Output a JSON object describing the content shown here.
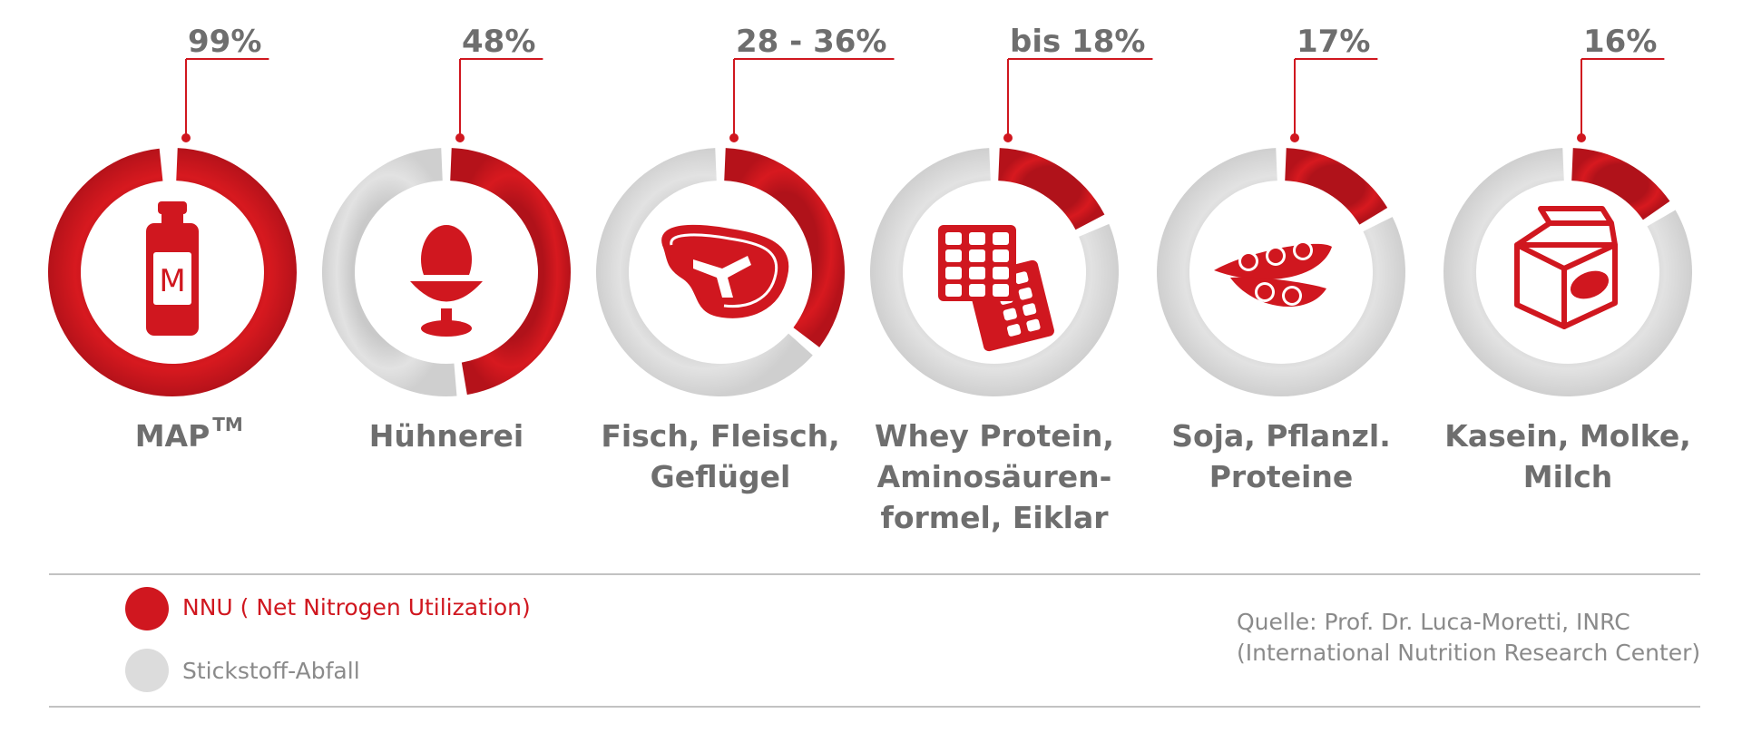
{
  "colors": {
    "nnu": "#d0171f",
    "waste": "#dcdcdc",
    "text": "#6e6e6e",
    "divider": "#bdbdbd",
    "source": "#8a8a8a"
  },
  "chart_data": {
    "type": "pie",
    "series": [
      {
        "category_lines": [
          "MAP"
        ],
        "superscript": "TM",
        "label": "99%",
        "value": 99,
        "icon": "bottle-icon"
      },
      {
        "category_lines": [
          "Hühnerei"
        ],
        "label": "48%",
        "value": 48,
        "icon": "egg-cup-icon"
      },
      {
        "category_lines": [
          "Fisch, Fleisch,",
          "Geflügel"
        ],
        "label": "28 - 36%",
        "value": 36,
        "value_range": [
          28,
          36
        ],
        "icon": "steak-icon"
      },
      {
        "category_lines": [
          "Whey Protein,",
          "Aminosäuren-",
          "formel, Eiklar"
        ],
        "label": "bis 18%",
        "value": 18,
        "icon": "pill-blister-icon"
      },
      {
        "category_lines": [
          "Soja, Pflanzl.",
          "Proteine"
        ],
        "label": "17%",
        "value": 17,
        "icon": "soy-pod-icon"
      },
      {
        "category_lines": [
          "Kasein, Molke,",
          "Milch"
        ],
        "label": "16%",
        "value": 16,
        "icon": "milk-carton-icon"
      }
    ],
    "legend": [
      {
        "label": "NNU ( Net Nitrogen Utilization)",
        "color": "#d0171f"
      },
      {
        "label": "Stickstoff-Abfall",
        "color": "#dcdcdc"
      }
    ]
  },
  "source_lines": [
    "Quelle: Prof. Dr. Luca-Moretti, INRC",
    "(International Nutrition Research Center)"
  ]
}
